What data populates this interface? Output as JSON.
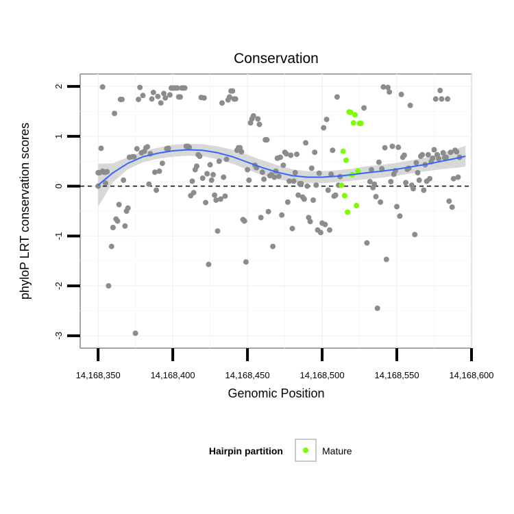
{
  "chart_data": {
    "type": "scatter",
    "title": "Conservation",
    "xlabel": "Genomic Position",
    "ylabel": "phyloP LRT conservation scores",
    "xlim": [
      14168338,
      14168600
    ],
    "ylim": [
      -3.25,
      2.25
    ],
    "x_ticks": [
      14168350,
      14168400,
      14168450,
      14168500,
      14168550,
      14168600
    ],
    "x_tick_labels": [
      "14,168,350",
      "14,168,400",
      "14,168,450",
      "14,168,500",
      "14,168,550",
      "14,168,600"
    ],
    "y_ticks": [
      -3,
      -2,
      -1,
      0,
      1,
      2
    ],
    "y_tick_labels": [
      "-3",
      "-2",
      "-1",
      "0",
      "1",
      "2"
    ],
    "grid": true,
    "reference_line": {
      "y": 0,
      "style": "dashed"
    },
    "legend": {
      "title": "Hairpin partition",
      "position": "bottom",
      "entries": [
        "Mature"
      ]
    },
    "colors": {
      "background": "#000000",
      "mature": "#7cfc00",
      "smooth": "#3366ff",
      "ribbon": "#d4d4d4",
      "panel_border": "#888888",
      "grid": "#f2f2f2"
    },
    "series": [
      {
        "name": "",
        "color": "#8c8c8c",
        "points": [
          [
            14168350,
            0.0
          ],
          [
            14168350,
            0.27
          ],
          [
            14168351,
            0.27
          ],
          [
            14168352,
            0.76
          ],
          [
            14168353,
            0.3
          ],
          [
            14168353,
            1.99
          ],
          [
            14168354,
            0.28
          ],
          [
            14168355,
            0.28
          ],
          [
            14168355,
            0.06
          ],
          [
            14168356,
            0.29
          ],
          [
            14168357,
            -2.0
          ],
          [
            14168359,
            -1.21
          ],
          [
            14168360,
            -0.83
          ],
          [
            14168361,
            1.46
          ],
          [
            14168362,
            -0.66
          ],
          [
            14168363,
            -0.7
          ],
          [
            14168364,
            -0.37
          ],
          [
            14168365,
            1.74
          ],
          [
            14168366,
            1.74
          ],
          [
            14168367,
            0.12
          ],
          [
            14168368,
            -0.8
          ],
          [
            14168369,
            -0.5
          ],
          [
            14168370,
            -0.44
          ],
          [
            14168371,
            0.58
          ],
          [
            14168373,
            0.59
          ],
          [
            14168374,
            0.59
          ],
          [
            14168375,
            -2.95
          ],
          [
            14168376,
            0.75
          ],
          [
            14168377,
            1.74
          ],
          [
            14168378,
            1.98
          ],
          [
            14168379,
            0.67
          ],
          [
            14168380,
            1.82
          ],
          [
            14168381,
            0.7
          ],
          [
            14168382,
            0.77
          ],
          [
            14168383,
            0.79
          ],
          [
            14168384,
            0.04
          ],
          [
            14168385,
            0.65
          ],
          [
            14168386,
            1.75
          ],
          [
            14168387,
            1.88
          ],
          [
            14168388,
            0.28
          ],
          [
            14168389,
            -0.08
          ],
          [
            14168390,
            1.8
          ],
          [
            14168391,
            0.3
          ],
          [
            14168392,
            1.67
          ],
          [
            14168393,
            0.46
          ],
          [
            14168394,
            1.86
          ],
          [
            14168395,
            1.77
          ],
          [
            14168396,
            0.75
          ],
          [
            14168397,
            0.76
          ],
          [
            14168398,
            1.83
          ],
          [
            14168399,
            1.97
          ],
          [
            14168400,
            1.97
          ],
          [
            14168401,
            1.97
          ],
          [
            14168402,
            1.97
          ],
          [
            14168403,
            1.97
          ],
          [
            14168404,
            1.79
          ],
          [
            14168405,
            1.79
          ],
          [
            14168406,
            1.97
          ],
          [
            14168407,
            1.97
          ],
          [
            14168408,
            1.97
          ],
          [
            14168409,
            0.8
          ],
          [
            14168410,
            0.8
          ],
          [
            14168411,
            0.78
          ],
          [
            14168412,
            -0.19
          ],
          [
            14168413,
            0.1
          ],
          [
            14168414,
            -0.13
          ],
          [
            14168415,
            0.33
          ],
          [
            14168416,
            0.4
          ],
          [
            14168417,
            0.63
          ],
          [
            14168418,
            0.6
          ],
          [
            14168419,
            1.78
          ],
          [
            14168420,
            0.16
          ],
          [
            14168421,
            1.77
          ],
          [
            14168422,
            -0.33
          ],
          [
            14168423,
            0.25
          ],
          [
            14168424,
            -1.57
          ],
          [
            14168425,
            0.43
          ],
          [
            14168426,
            0.12
          ],
          [
            14168427,
            0.23
          ],
          [
            14168428,
            -0.18
          ],
          [
            14168429,
            -0.28
          ],
          [
            14168430,
            -0.9
          ],
          [
            14168431,
            0.5
          ],
          [
            14168432,
            -0.26
          ],
          [
            14168433,
            1.67
          ],
          [
            14168434,
            0.18
          ],
          [
            14168435,
            -0.2
          ],
          [
            14168436,
            0.54
          ],
          [
            14168437,
            1.73
          ],
          [
            14168438,
            1.79
          ],
          [
            14168439,
            1.91
          ],
          [
            14168440,
            1.91
          ],
          [
            14168441,
            1.75
          ],
          [
            14168442,
            1.75
          ],
          [
            14168443,
            0.72
          ],
          [
            14168444,
            0.77
          ],
          [
            14168445,
            0.77
          ],
          [
            14168446,
            0.69
          ],
          [
            14168447,
            -0.67
          ],
          [
            14168448,
            -0.7
          ],
          [
            14168449,
            -1.52
          ],
          [
            14168450,
            0.33
          ],
          [
            14168451,
            0.12
          ],
          [
            14168452,
            1.27
          ],
          [
            14168453,
            1.35
          ],
          [
            14168454,
            1.41
          ],
          [
            14168455,
            0.42
          ],
          [
            14168456,
            0.37
          ],
          [
            14168457,
            1.35
          ],
          [
            14168458,
            1.24
          ],
          [
            14168459,
            -0.63
          ],
          [
            14168460,
            0.28
          ],
          [
            14168461,
            0.14
          ],
          [
            14168462,
            0.93
          ],
          [
            14168463,
            0.93
          ],
          [
            14168464,
            -0.51
          ],
          [
            14168465,
            0.21
          ],
          [
            14168466,
            0.23
          ],
          [
            14168467,
            -1.21
          ],
          [
            14168468,
            0.18
          ],
          [
            14168469,
            0.3
          ],
          [
            14168470,
            0.56
          ],
          [
            14168471,
            0.2
          ],
          [
            14168472,
            0.58
          ],
          [
            14168473,
            -0.58
          ],
          [
            14168474,
            0.42
          ],
          [
            14168475,
            0.68
          ],
          [
            14168476,
            0.65
          ],
          [
            14168477,
            -0.32
          ],
          [
            14168478,
            0.1
          ],
          [
            14168479,
            0.62
          ],
          [
            14168480,
            -0.85
          ],
          [
            14168481,
            0.1
          ],
          [
            14168482,
            0.27
          ],
          [
            14168483,
            0.64
          ],
          [
            14168484,
            -0.18
          ],
          [
            14168485,
            0.05
          ],
          [
            14168486,
            0.05
          ],
          [
            14168487,
            -0.22
          ],
          [
            14168488,
            -0.26
          ],
          [
            14168489,
            0.87
          ],
          [
            14168490,
            0.0
          ],
          [
            14168491,
            -0.63
          ],
          [
            14168492,
            -0.71
          ],
          [
            14168493,
            0.36
          ],
          [
            14168494,
            -0.28
          ],
          [
            14168495,
            0.68
          ],
          [
            14168496,
            0.02
          ],
          [
            14168497,
            -0.88
          ],
          [
            14168498,
            0.26
          ],
          [
            14168499,
            -0.93
          ],
          [
            14168500,
            -0.74
          ],
          [
            14168501,
            1.17
          ],
          [
            14168502,
            -0.77
          ],
          [
            14168503,
            1.34
          ],
          [
            14168504,
            -0.08
          ],
          [
            14168505,
            -0.88
          ],
          [
            14168506,
            0.24
          ],
          [
            14168507,
            0.72
          ],
          [
            14168508,
            -0.2
          ],
          [
            14168509,
            -0.18
          ],
          [
            14168510,
            1.79
          ],
          [
            14168511,
            0.02
          ],
          [
            14168512,
            0.19
          ],
          [
            14168528,
            1.57
          ],
          [
            14168530,
            -1.14
          ],
          [
            14168532,
            0.09
          ],
          [
            14168533,
            0.33
          ],
          [
            14168534,
            -0.03
          ],
          [
            14168535,
            0.04
          ],
          [
            14168536,
            -0.21
          ],
          [
            14168537,
            -2.45
          ],
          [
            14168538,
            0.48
          ],
          [
            14168539,
            -0.32
          ],
          [
            14168540,
            0.35
          ],
          [
            14168541,
            1.99
          ],
          [
            14168542,
            0.77
          ],
          [
            14168543,
            -1.47
          ],
          [
            14168544,
            1.98
          ],
          [
            14168545,
            1.89
          ],
          [
            14168546,
            0.09
          ],
          [
            14168547,
            0.8
          ],
          [
            14168548,
            0.24
          ],
          [
            14168549,
            0.31
          ],
          [
            14168550,
            -0.41
          ],
          [
            14168551,
            0.78
          ],
          [
            14168552,
            -0.6
          ],
          [
            14168553,
            1.84
          ],
          [
            14168554,
            0.58
          ],
          [
            14168555,
            0.62
          ],
          [
            14168556,
            0.07
          ],
          [
            14168557,
            0.34
          ],
          [
            14168558,
            0.36
          ],
          [
            14168559,
            1.62
          ],
          [
            14168560,
            0.02
          ],
          [
            14168561,
            -0.05
          ],
          [
            14168562,
            -0.97
          ],
          [
            14168563,
            0.47
          ],
          [
            14168564,
            0.27
          ],
          [
            14168565,
            0.12
          ],
          [
            14168566,
            0.6
          ],
          [
            14168567,
            0.63
          ],
          [
            14168568,
            -0.08
          ],
          [
            14168569,
            0.43
          ],
          [
            14168570,
            0.1
          ],
          [
            14168571,
            0.63
          ],
          [
            14168572,
            0.15
          ],
          [
            14168573,
            0.49
          ],
          [
            14168574,
            0.56
          ],
          [
            14168575,
            0.73
          ],
          [
            14168576,
            1.75
          ],
          [
            14168577,
            0.63
          ],
          [
            14168578,
            0.55
          ],
          [
            14168579,
            1.92
          ],
          [
            14168580,
            1.75
          ],
          [
            14168581,
            0.67
          ],
          [
            14168582,
            0.57
          ],
          [
            14168583,
            0.58
          ],
          [
            14168584,
            1.75
          ],
          [
            14168585,
            -0.3
          ],
          [
            14168586,
            0.68
          ],
          [
            14168587,
            -0.42
          ],
          [
            14168588,
            0.15
          ],
          [
            14168589,
            0.72
          ],
          [
            14168590,
            0.69
          ],
          [
            14168591,
            0.18
          ],
          [
            14168592,
            0.58
          ]
        ]
      },
      {
        "name": "Mature",
        "color": "#7cfc00",
        "points": [
          [
            14168513,
            0.02
          ],
          [
            14168514,
            0.7
          ],
          [
            14168515,
            -0.19
          ],
          [
            14168516,
            0.52
          ],
          [
            14168517,
            -0.52
          ],
          [
            14168518,
            1.49
          ],
          [
            14168519,
            1.48
          ],
          [
            14168520,
            0.23
          ],
          [
            14168521,
            1.27
          ],
          [
            14168522,
            1.43
          ],
          [
            14168523,
            -0.39
          ],
          [
            14168524,
            0.3
          ],
          [
            14168525,
            1.26
          ],
          [
            14168526,
            1.26
          ]
        ]
      }
    ],
    "smooth_fit": {
      "x": [
        14168350,
        14168360,
        14168370,
        14168380,
        14168390,
        14168400,
        14168410,
        14168420,
        14168430,
        14168440,
        14168450,
        14168460,
        14168470,
        14168480,
        14168490,
        14168500,
        14168510,
        14168520,
        14168530,
        14168540,
        14168550,
        14168560,
        14168570,
        14168580,
        14168590,
        14168596
      ],
      "y": [
        0.02,
        0.27,
        0.46,
        0.59,
        0.66,
        0.71,
        0.73,
        0.72,
        0.67,
        0.59,
        0.48,
        0.37,
        0.28,
        0.21,
        0.18,
        0.18,
        0.2,
        0.23,
        0.27,
        0.3,
        0.34,
        0.39,
        0.44,
        0.5,
        0.56,
        0.6
      ],
      "lower": [
        -0.41,
        0.08,
        0.34,
        0.48,
        0.55,
        0.59,
        0.61,
        0.6,
        0.54,
        0.45,
        0.33,
        0.22,
        0.14,
        0.08,
        0.06,
        0.06,
        0.08,
        0.11,
        0.14,
        0.17,
        0.21,
        0.26,
        0.3,
        0.34,
        0.37,
        0.39
      ],
      "upper": [
        0.45,
        0.46,
        0.58,
        0.7,
        0.77,
        0.83,
        0.85,
        0.84,
        0.8,
        0.73,
        0.63,
        0.52,
        0.42,
        0.34,
        0.3,
        0.3,
        0.32,
        0.35,
        0.4,
        0.43,
        0.47,
        0.52,
        0.58,
        0.66,
        0.75,
        0.81
      ]
    }
  }
}
